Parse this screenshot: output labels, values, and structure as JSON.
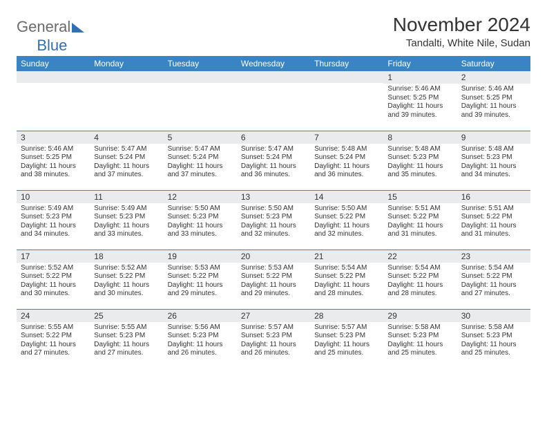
{
  "logo": {
    "word1": "General",
    "word2": "Blue"
  },
  "title": "November 2024",
  "location": "Tandalti, White Nile, Sudan",
  "colors": {
    "header_bg": "#3b84c4",
    "header_text": "#ffffff",
    "daynum_bg": "#e9ebed",
    "row_border": "#5a7a99",
    "logo_gray": "#6b6b6b",
    "logo_blue": "#2f6fb2",
    "text": "#333333"
  },
  "weekdays": [
    "Sunday",
    "Monday",
    "Tuesday",
    "Wednesday",
    "Thursday",
    "Friday",
    "Saturday"
  ],
  "weeks": [
    [
      null,
      null,
      null,
      null,
      null,
      {
        "n": "1",
        "sr": "Sunrise: 5:46 AM",
        "ss": "Sunset: 5:25 PM",
        "d1": "Daylight: 11 hours",
        "d2": "and 39 minutes."
      },
      {
        "n": "2",
        "sr": "Sunrise: 5:46 AM",
        "ss": "Sunset: 5:25 PM",
        "d1": "Daylight: 11 hours",
        "d2": "and 39 minutes."
      }
    ],
    [
      {
        "n": "3",
        "sr": "Sunrise: 5:46 AM",
        "ss": "Sunset: 5:25 PM",
        "d1": "Daylight: 11 hours",
        "d2": "and 38 minutes."
      },
      {
        "n": "4",
        "sr": "Sunrise: 5:47 AM",
        "ss": "Sunset: 5:24 PM",
        "d1": "Daylight: 11 hours",
        "d2": "and 37 minutes."
      },
      {
        "n": "5",
        "sr": "Sunrise: 5:47 AM",
        "ss": "Sunset: 5:24 PM",
        "d1": "Daylight: 11 hours",
        "d2": "and 37 minutes."
      },
      {
        "n": "6",
        "sr": "Sunrise: 5:47 AM",
        "ss": "Sunset: 5:24 PM",
        "d1": "Daylight: 11 hours",
        "d2": "and 36 minutes."
      },
      {
        "n": "7",
        "sr": "Sunrise: 5:48 AM",
        "ss": "Sunset: 5:24 PM",
        "d1": "Daylight: 11 hours",
        "d2": "and 36 minutes."
      },
      {
        "n": "8",
        "sr": "Sunrise: 5:48 AM",
        "ss": "Sunset: 5:23 PM",
        "d1": "Daylight: 11 hours",
        "d2": "and 35 minutes."
      },
      {
        "n": "9",
        "sr": "Sunrise: 5:48 AM",
        "ss": "Sunset: 5:23 PM",
        "d1": "Daylight: 11 hours",
        "d2": "and 34 minutes."
      }
    ],
    [
      {
        "n": "10",
        "sr": "Sunrise: 5:49 AM",
        "ss": "Sunset: 5:23 PM",
        "d1": "Daylight: 11 hours",
        "d2": "and 34 minutes."
      },
      {
        "n": "11",
        "sr": "Sunrise: 5:49 AM",
        "ss": "Sunset: 5:23 PM",
        "d1": "Daylight: 11 hours",
        "d2": "and 33 minutes."
      },
      {
        "n": "12",
        "sr": "Sunrise: 5:50 AM",
        "ss": "Sunset: 5:23 PM",
        "d1": "Daylight: 11 hours",
        "d2": "and 33 minutes."
      },
      {
        "n": "13",
        "sr": "Sunrise: 5:50 AM",
        "ss": "Sunset: 5:23 PM",
        "d1": "Daylight: 11 hours",
        "d2": "and 32 minutes."
      },
      {
        "n": "14",
        "sr": "Sunrise: 5:50 AM",
        "ss": "Sunset: 5:22 PM",
        "d1": "Daylight: 11 hours",
        "d2": "and 32 minutes."
      },
      {
        "n": "15",
        "sr": "Sunrise: 5:51 AM",
        "ss": "Sunset: 5:22 PM",
        "d1": "Daylight: 11 hours",
        "d2": "and 31 minutes."
      },
      {
        "n": "16",
        "sr": "Sunrise: 5:51 AM",
        "ss": "Sunset: 5:22 PM",
        "d1": "Daylight: 11 hours",
        "d2": "and 31 minutes."
      }
    ],
    [
      {
        "n": "17",
        "sr": "Sunrise: 5:52 AM",
        "ss": "Sunset: 5:22 PM",
        "d1": "Daylight: 11 hours",
        "d2": "and 30 minutes."
      },
      {
        "n": "18",
        "sr": "Sunrise: 5:52 AM",
        "ss": "Sunset: 5:22 PM",
        "d1": "Daylight: 11 hours",
        "d2": "and 30 minutes."
      },
      {
        "n": "19",
        "sr": "Sunrise: 5:53 AM",
        "ss": "Sunset: 5:22 PM",
        "d1": "Daylight: 11 hours",
        "d2": "and 29 minutes."
      },
      {
        "n": "20",
        "sr": "Sunrise: 5:53 AM",
        "ss": "Sunset: 5:22 PM",
        "d1": "Daylight: 11 hours",
        "d2": "and 29 minutes."
      },
      {
        "n": "21",
        "sr": "Sunrise: 5:54 AM",
        "ss": "Sunset: 5:22 PM",
        "d1": "Daylight: 11 hours",
        "d2": "and 28 minutes."
      },
      {
        "n": "22",
        "sr": "Sunrise: 5:54 AM",
        "ss": "Sunset: 5:22 PM",
        "d1": "Daylight: 11 hours",
        "d2": "and 28 minutes."
      },
      {
        "n": "23",
        "sr": "Sunrise: 5:54 AM",
        "ss": "Sunset: 5:22 PM",
        "d1": "Daylight: 11 hours",
        "d2": "and 27 minutes."
      }
    ],
    [
      {
        "n": "24",
        "sr": "Sunrise: 5:55 AM",
        "ss": "Sunset: 5:22 PM",
        "d1": "Daylight: 11 hours",
        "d2": "and 27 minutes."
      },
      {
        "n": "25",
        "sr": "Sunrise: 5:55 AM",
        "ss": "Sunset: 5:23 PM",
        "d1": "Daylight: 11 hours",
        "d2": "and 27 minutes."
      },
      {
        "n": "26",
        "sr": "Sunrise: 5:56 AM",
        "ss": "Sunset: 5:23 PM",
        "d1": "Daylight: 11 hours",
        "d2": "and 26 minutes."
      },
      {
        "n": "27",
        "sr": "Sunrise: 5:57 AM",
        "ss": "Sunset: 5:23 PM",
        "d1": "Daylight: 11 hours",
        "d2": "and 26 minutes."
      },
      {
        "n": "28",
        "sr": "Sunrise: 5:57 AM",
        "ss": "Sunset: 5:23 PM",
        "d1": "Daylight: 11 hours",
        "d2": "and 25 minutes."
      },
      {
        "n": "29",
        "sr": "Sunrise: 5:58 AM",
        "ss": "Sunset: 5:23 PM",
        "d1": "Daylight: 11 hours",
        "d2": "and 25 minutes."
      },
      {
        "n": "30",
        "sr": "Sunrise: 5:58 AM",
        "ss": "Sunset: 5:23 PM",
        "d1": "Daylight: 11 hours",
        "d2": "and 25 minutes."
      }
    ]
  ]
}
